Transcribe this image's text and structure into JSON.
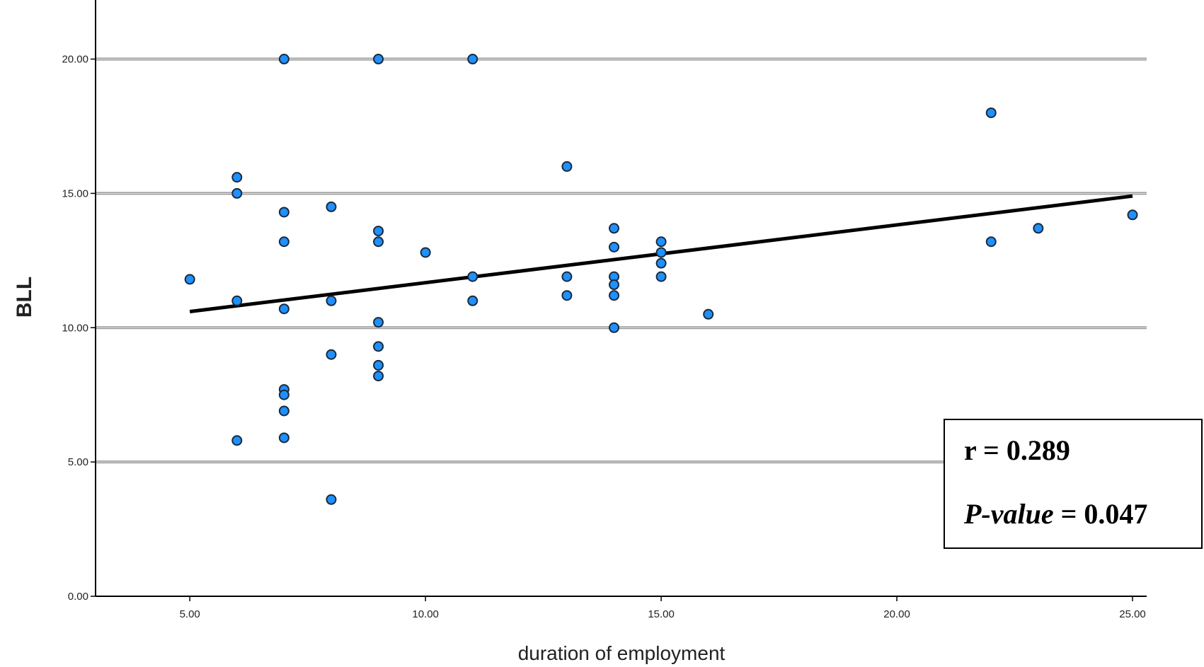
{
  "chart_data": {
    "type": "scatter",
    "title": "",
    "xlabel": "duration of employment",
    "ylabel": "BLL",
    "xlim": [
      3,
      25.3
    ],
    "ylim": [
      0,
      22.2
    ],
    "xticks": [
      "5.00",
      "10.00",
      "15.00",
      "20.00",
      "25.00"
    ],
    "xtick_values": [
      5,
      10,
      15,
      20,
      25
    ],
    "yticks": [
      "0.00",
      "5.00",
      "10.00",
      "15.00",
      "20.00"
    ],
    "ytick_values": [
      0,
      5,
      10,
      15,
      20
    ],
    "grid": "horizontal",
    "points": [
      [
        5,
        11.8
      ],
      [
        6,
        15.6
      ],
      [
        6,
        15.0
      ],
      [
        6,
        11.0
      ],
      [
        6,
        5.8
      ],
      [
        7,
        20.0
      ],
      [
        7,
        14.3
      ],
      [
        7,
        13.2
      ],
      [
        7,
        10.7
      ],
      [
        7,
        7.7
      ],
      [
        7,
        7.5
      ],
      [
        7,
        6.9
      ],
      [
        7,
        5.9
      ],
      [
        8,
        14.5
      ],
      [
        8,
        11.0
      ],
      [
        8,
        9.0
      ],
      [
        8,
        3.6
      ],
      [
        9,
        20.0
      ],
      [
        9,
        13.6
      ],
      [
        9,
        13.2
      ],
      [
        9,
        10.2
      ],
      [
        9,
        9.3
      ],
      [
        9,
        8.6
      ],
      [
        9,
        8.2
      ],
      [
        10,
        12.8
      ],
      [
        11,
        20.0
      ],
      [
        11,
        11.9
      ],
      [
        11,
        11.0
      ],
      [
        13,
        16.0
      ],
      [
        13,
        11.9
      ],
      [
        13,
        11.2
      ],
      [
        14,
        13.7
      ],
      [
        14,
        13.0
      ],
      [
        14,
        11.9
      ],
      [
        14,
        11.6
      ],
      [
        14,
        11.2
      ],
      [
        14,
        10.0
      ],
      [
        15,
        13.2
      ],
      [
        15,
        12.8
      ],
      [
        15,
        12.4
      ],
      [
        15,
        11.9
      ],
      [
        16,
        10.5
      ],
      [
        22,
        18.0
      ],
      [
        22,
        13.2
      ],
      [
        23,
        13.7
      ],
      [
        25,
        14.2
      ]
    ],
    "trendline": {
      "x": [
        5,
        25
      ],
      "y": [
        10.6,
        14.9
      ]
    },
    "annotation": {
      "r_text": "r = 0.289",
      "p_label": "P-value",
      "p_value_text": " = 0.047"
    },
    "colors": {
      "point_fill": "#1e90ff",
      "point_stroke": "#1a2a3a",
      "grid": "#9a9a9a",
      "trendline": "#000000"
    }
  }
}
